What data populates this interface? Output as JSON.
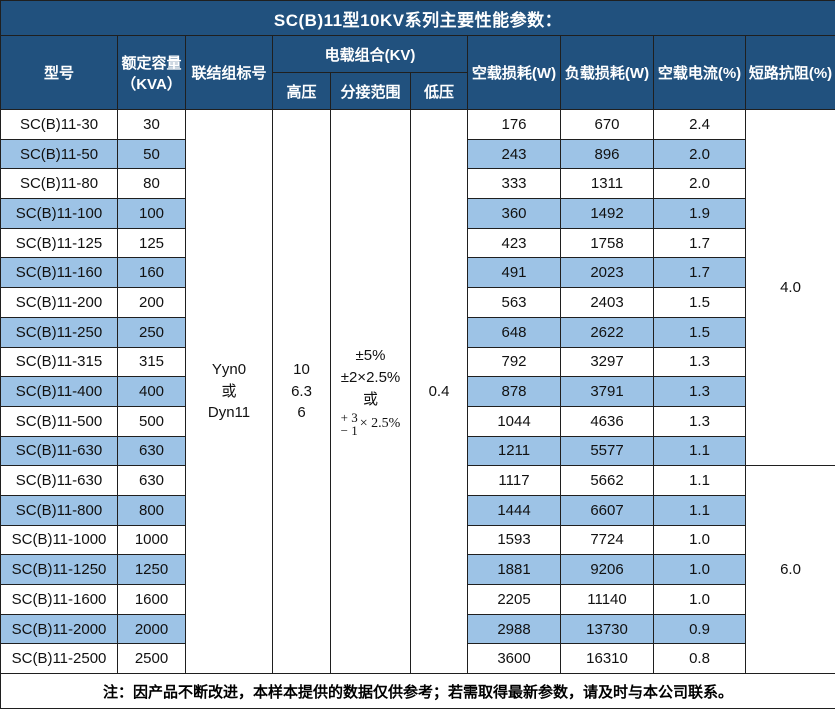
{
  "title": "SC(B)11型10KV系列主要性能参数：",
  "colors": {
    "header_bg": "#21517E",
    "stripe_bg": "#9DC3E6",
    "grid_line": "#1f1f1f",
    "header_text": "#ffffff"
  },
  "header": {
    "model": "型号",
    "capacity_line1": "额定容量",
    "capacity_line2": "（KVA）",
    "connection": "联结组标号",
    "voltage_group": "电载组合(KV)",
    "hv": "高压",
    "tap_range": "分接范围",
    "lv": "低压",
    "no_load_loss": "空载损耗(W)",
    "load_loss": "负载损耗(W)",
    "no_load_current": "空载电流(%)",
    "impedance": "短路抗阻(%)"
  },
  "merged": {
    "connection_lines": [
      "Yyn0",
      "或",
      "Dyn11"
    ],
    "hv_lines": [
      "10",
      "6.3",
      "6"
    ],
    "tap_lines": [
      "±5%",
      "±2×2.5%",
      "或"
    ],
    "tap_frac_top": "+ 3",
    "tap_frac_bottom": "− 1",
    "tap_frac_suffix": "× 2.5%",
    "lv": "0.4",
    "impedance_group1": "4.0",
    "impedance_group1_rows": 12,
    "impedance_group2": "6.0",
    "impedance_group2_rows": 7
  },
  "rows": [
    {
      "model": "SC(B)11-30",
      "capacity": "30",
      "no_load_loss": "176",
      "load_loss": "670",
      "no_load_current": "2.4"
    },
    {
      "model": "SC(B)11-50",
      "capacity": "50",
      "no_load_loss": "243",
      "load_loss": "896",
      "no_load_current": "2.0"
    },
    {
      "model": "SC(B)11-80",
      "capacity": "80",
      "no_load_loss": "333",
      "load_loss": "1311",
      "no_load_current": "2.0"
    },
    {
      "model": "SC(B)11-100",
      "capacity": "100",
      "no_load_loss": "360",
      "load_loss": "1492",
      "no_load_current": "1.9"
    },
    {
      "model": "SC(B)11-125",
      "capacity": "125",
      "no_load_loss": "423",
      "load_loss": "1758",
      "no_load_current": "1.7"
    },
    {
      "model": "SC(B)11-160",
      "capacity": "160",
      "no_load_loss": "491",
      "load_loss": "2023",
      "no_load_current": "1.7"
    },
    {
      "model": "SC(B)11-200",
      "capacity": "200",
      "no_load_loss": "563",
      "load_loss": "2403",
      "no_load_current": "1.5"
    },
    {
      "model": "SC(B)11-250",
      "capacity": "250",
      "no_load_loss": "648",
      "load_loss": "2622",
      "no_load_current": "1.5"
    },
    {
      "model": "SC(B)11-315",
      "capacity": "315",
      "no_load_loss": "792",
      "load_loss": "3297",
      "no_load_current": "1.3"
    },
    {
      "model": "SC(B)11-400",
      "capacity": "400",
      "no_load_loss": "878",
      "load_loss": "3791",
      "no_load_current": "1.3"
    },
    {
      "model": "SC(B)11-500",
      "capacity": "500",
      "no_load_loss": "1044",
      "load_loss": "4636",
      "no_load_current": "1.3"
    },
    {
      "model": "SC(B)11-630",
      "capacity": "630",
      "no_load_loss": "1211",
      "load_loss": "5577",
      "no_load_current": "1.1"
    },
    {
      "model": "SC(B)11-630",
      "capacity": "630",
      "no_load_loss": "1117",
      "load_loss": "5662",
      "no_load_current": "1.1"
    },
    {
      "model": "SC(B)11-800",
      "capacity": "800",
      "no_load_loss": "1444",
      "load_loss": "6607",
      "no_load_current": "1.1"
    },
    {
      "model": "SC(B)11-1000",
      "capacity": "1000",
      "no_load_loss": "1593",
      "load_loss": "7724",
      "no_load_current": "1.0"
    },
    {
      "model": "SC(B)11-1250",
      "capacity": "1250",
      "no_load_loss": "1881",
      "load_loss": "9206",
      "no_load_current": "1.0"
    },
    {
      "model": "SC(B)11-1600",
      "capacity": "1600",
      "no_load_loss": "2205",
      "load_loss": "11140",
      "no_load_current": "1.0"
    },
    {
      "model": "SC(B)11-2000",
      "capacity": "2000",
      "no_load_loss": "2988",
      "load_loss": "13730",
      "no_load_current": "0.9"
    },
    {
      "model": "SC(B)11-2500",
      "capacity": "2500",
      "no_load_loss": "3600",
      "load_loss": "16310",
      "no_load_current": "0.8"
    }
  ],
  "footer": "注：因产品不断改进，本样本提供的数据仅供参考；若需取得最新参数，请及时与本公司联系。"
}
